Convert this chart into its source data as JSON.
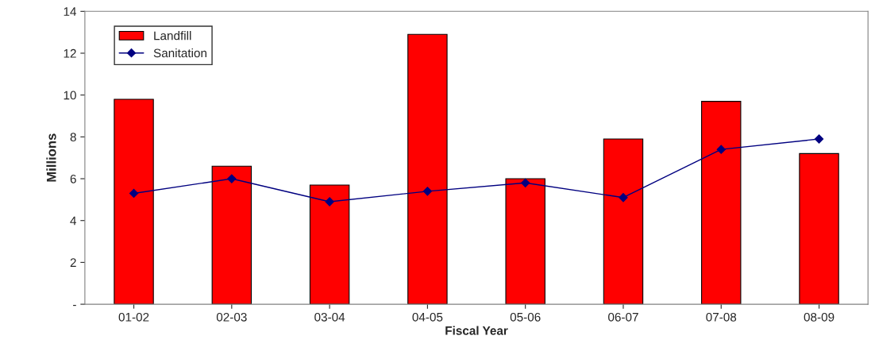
{
  "chart_data": {
    "type": "bar",
    "xlabel": "Fiscal Year",
    "ylabel": "Millions",
    "categories": [
      "01-02",
      "02-03",
      "03-04",
      "04-05",
      "05-06",
      "06-07",
      "07-08",
      "08-09"
    ],
    "series": [
      {
        "name": "Landfill",
        "color": "#ff0000",
        "values": [
          9.8,
          6.6,
          5.7,
          12.9,
          6.0,
          7.9,
          9.7,
          7.2
        ]
      },
      {
        "name": "Sanitation",
        "type": "line",
        "color": "#000080",
        "marker": "diamond",
        "values": [
          5.3,
          6.0,
          4.9,
          5.4,
          5.8,
          5.1,
          7.4,
          7.9
        ]
      }
    ],
    "ylim": [
      0,
      14
    ],
    "yticks": [
      {
        "value": 0,
        "label": "-"
      },
      2,
      4,
      6,
      8,
      10,
      12,
      14
    ],
    "grid": false,
    "legend": "top left"
  }
}
